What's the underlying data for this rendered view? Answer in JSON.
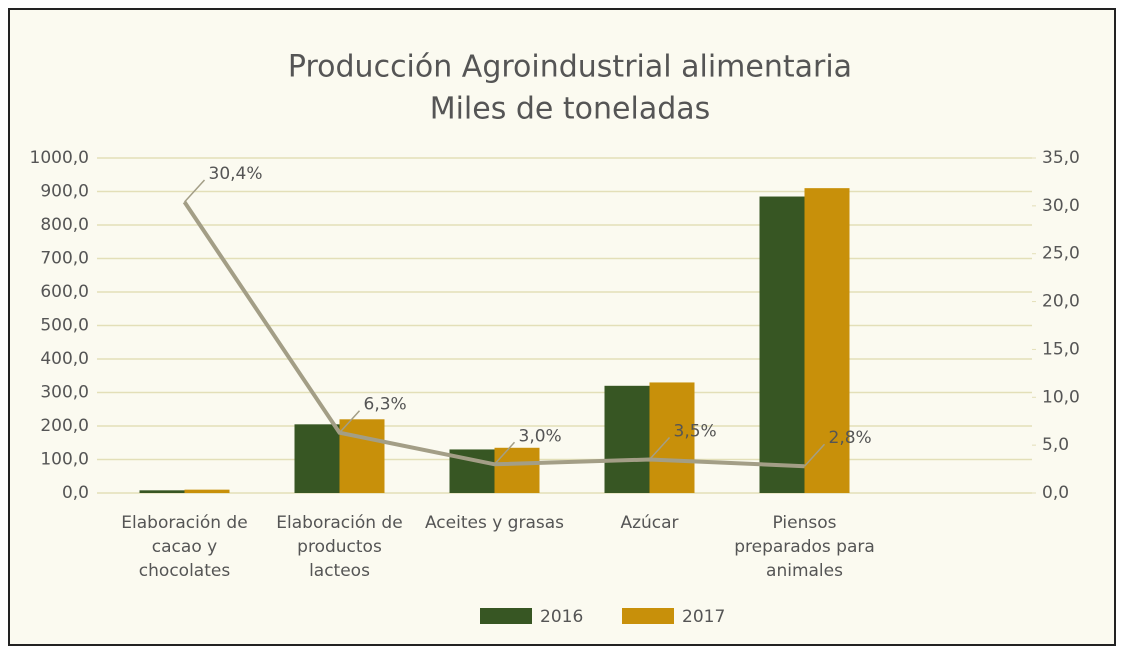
{
  "chart_data": {
    "type": "bar",
    "title": "Producción Agroindustrial alimentaria",
    "subtitle": "Miles de toneladas",
    "categories": [
      "Elaboración de cacao y chocolates",
      "Elaboración de productos lacteos",
      "Aceites y grasas",
      "Azúcar",
      "Piensos preparados para animales"
    ],
    "series": [
      {
        "name": "2016",
        "color": "#375623",
        "values": [
          8,
          205,
          130,
          320,
          885
        ]
      },
      {
        "name": "2017",
        "color": "#c8900a",
        "values": [
          10,
          220,
          135,
          330,
          910
        ]
      },
      {
        "type": "line",
        "axis": "y2",
        "color": "#a39e86",
        "values": [
          30.4,
          6.3,
          3.0,
          3.5,
          2.8
        ],
        "value_labels": [
          "30,4%",
          "6,3%",
          "3,0%",
          "3,5%",
          "2,8%"
        ]
      }
    ],
    "ylim": [
      0,
      1000
    ],
    "yticks": [
      {
        "value": 0,
        "label": "0,0"
      },
      {
        "value": 100,
        "label": "100,0"
      },
      {
        "value": 200,
        "label": "200,0"
      },
      {
        "value": 300,
        "label": "300,0"
      },
      {
        "value": 400,
        "label": "400,0"
      },
      {
        "value": 500,
        "label": "500,0"
      },
      {
        "value": 600,
        "label": "600,0"
      },
      {
        "value": 700,
        "label": "700,0"
      },
      {
        "value": 800,
        "label": "800,0"
      },
      {
        "value": 900,
        "label": "900,0"
      },
      {
        "value": 1000,
        "label": "1000,0"
      }
    ],
    "y2lim": [
      0,
      35
    ],
    "y2ticks": [
      {
        "value": 0,
        "label": "0,0"
      },
      {
        "value": 5,
        "label": "5,0"
      },
      {
        "value": 10,
        "label": "10,0"
      },
      {
        "value": 15,
        "label": "15,0"
      },
      {
        "value": 20,
        "label": "20,0"
      },
      {
        "value": 25,
        "label": "25,0"
      },
      {
        "value": 30,
        "label": "30,0"
      },
      {
        "value": 35,
        "label": "35,0"
      }
    ],
    "grid": true,
    "legend": "bottom"
  }
}
